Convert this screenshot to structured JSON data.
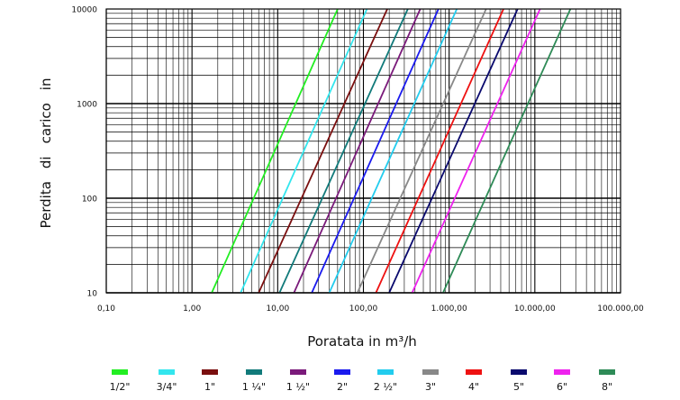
{
  "chart_data": {
    "type": "line",
    "title": "",
    "xlabel": "Poratata in m³/h",
    "ylabel_words": [
      "Perdita",
      "di",
      "carico",
      "in"
    ],
    "x_scale": "log",
    "y_scale": "log",
    "xlim": [
      0.1,
      100000
    ],
    "ylim": [
      10,
      10000
    ],
    "x_ticks": [
      0.1,
      1,
      10,
      100,
      1000,
      10000,
      100000
    ],
    "x_tick_labels": [
      "0,10",
      "1,00",
      "10,00",
      "100,00",
      "1.000,00",
      "10.000,00",
      "100.000,00"
    ],
    "y_ticks": [
      10,
      100,
      1000,
      10000
    ],
    "y_tick_labels": [
      "10",
      "100",
      "1000",
      "10000"
    ],
    "grid": true,
    "legend_position": "bottom",
    "series": [
      {
        "name": "1/2\"",
        "color": "#22ee22",
        "x": [
          1.7,
          50
        ],
        "y": [
          10,
          10000
        ]
      },
      {
        "name": "3/4\"",
        "color": "#33e6ee",
        "x": [
          3.7,
          110
        ],
        "y": [
          10,
          10000
        ]
      },
      {
        "name": "1\"",
        "color": "#7a0f0f",
        "x": [
          6.0,
          190
        ],
        "y": [
          10,
          10000
        ]
      },
      {
        "name": "1 ¼\"",
        "color": "#117a7a",
        "x": [
          10.5,
          330
        ],
        "y": [
          10,
          10000
        ]
      },
      {
        "name": "1 ½\"",
        "color": "#7a1a7a",
        "x": [
          15.5,
          460
        ],
        "y": [
          10,
          10000
        ]
      },
      {
        "name": "2\"",
        "color": "#1a1aee",
        "x": [
          25,
          750
        ],
        "y": [
          10,
          10000
        ]
      },
      {
        "name": "2 ½\"",
        "color": "#22ccee",
        "x": [
          40,
          1230
        ],
        "y": [
          10,
          10000
        ]
      },
      {
        "name": "3\"",
        "color": "#888888",
        "x": [
          85,
          2700
        ],
        "y": [
          10,
          10000
        ]
      },
      {
        "name": "4\"",
        "color": "#ee1111",
        "x": [
          140,
          4300
        ],
        "y": [
          10,
          10000
        ]
      },
      {
        "name": "5\"",
        "color": "#0a0a6e",
        "x": [
          200,
          6300
        ],
        "y": [
          10,
          10000
        ]
      },
      {
        "name": "6\"",
        "color": "#ee22ee",
        "x": [
          370,
          11500
        ],
        "y": [
          10,
          10000
        ]
      },
      {
        "name": "8\"",
        "color": "#2e8b57",
        "x": [
          850,
          26000
        ],
        "y": [
          10,
          10000
        ]
      }
    ]
  }
}
